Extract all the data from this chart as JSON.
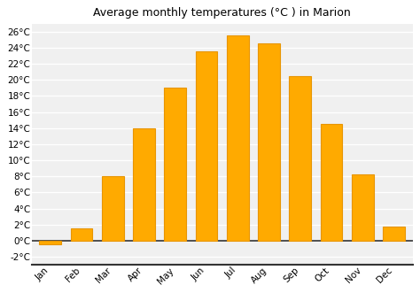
{
  "title": "Average monthly temperatures (°C ) in Marion",
  "months": [
    "Jan",
    "Feb",
    "Mar",
    "Apr",
    "May",
    "Jun",
    "Jul",
    "Aug",
    "Sep",
    "Oct",
    "Nov",
    "Dec"
  ],
  "values": [
    -0.5,
    1.5,
    8.0,
    14.0,
    19.0,
    23.5,
    25.5,
    24.5,
    20.5,
    14.5,
    8.2,
    1.8
  ],
  "bar_color": "#FFAA00",
  "bar_edge_color": "#E89500",
  "background_color": "#FFFFFF",
  "plot_bg_color": "#F0F0F0",
  "grid_color": "#FFFFFF",
  "ylim": [
    -3,
    27
  ],
  "yticks": [
    -2,
    0,
    2,
    4,
    6,
    8,
    10,
    12,
    14,
    16,
    18,
    20,
    22,
    24,
    26
  ],
  "title_fontsize": 9,
  "tick_fontsize": 7.5,
  "bar_width": 0.7
}
